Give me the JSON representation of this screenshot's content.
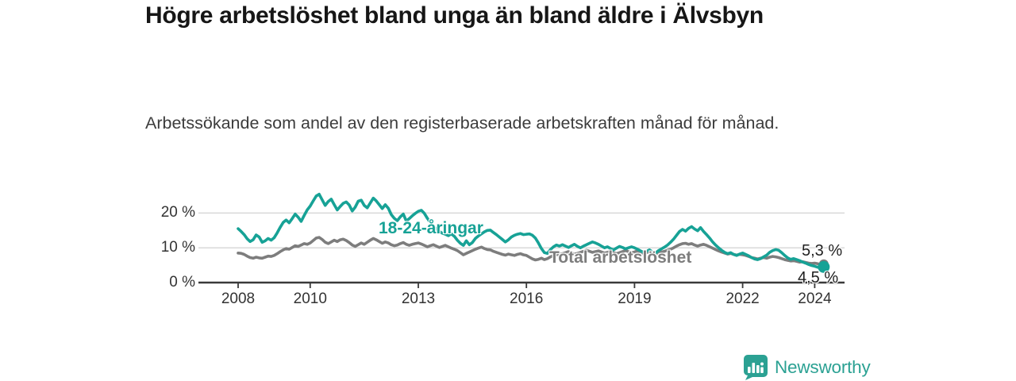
{
  "title": "Högre arbetslöshet bland unga än bland äldre i Älvsbyn",
  "subtitle": "Arbetssökande som andel av den registerbaserade arbetskraften månad för månad.",
  "branding": {
    "logo_text": "Newsworthy",
    "logo_icon": "bar-chart-pin-icon"
  },
  "colors": {
    "young": "#17a296",
    "total": "#7d7d7d",
    "axis_text": "#333333",
    "grid": "#d9d9d9",
    "axis_line": "#3a3a3a",
    "annotation_text": "#1f1f1f",
    "logo": "#2ba193"
  },
  "chart_data": {
    "type": "line",
    "unit": "%",
    "x_start": 2008,
    "x_step_months": 1,
    "x_ticks": [
      2008,
      2010,
      2013,
      2016,
      2019,
      2022,
      2024
    ],
    "y_ticks": [
      0,
      10,
      20
    ],
    "y_tick_labels": [
      "0 %",
      "10 %",
      "20 %"
    ],
    "ylim": [
      0,
      27
    ],
    "grid": true,
    "legend_position": "inline",
    "series": [
      {
        "name": "Total arbetslöshet",
        "color_key": "total",
        "end_label": "5,3 %",
        "end_value": 5.3,
        "values": [
          8.5,
          8.4,
          8.1,
          7.6,
          7.2,
          7.0,
          7.3,
          7.1,
          7.0,
          7.3,
          7.6,
          7.5,
          7.8,
          8.3,
          8.9,
          9.4,
          9.8,
          9.6,
          10.1,
          10.6,
          10.4,
          10.8,
          11.2,
          11.0,
          11.4,
          12.1,
          12.8,
          13.0,
          12.4,
          11.6,
          11.2,
          11.7,
          12.2,
          11.8,
          12.3,
          12.5,
          12.1,
          11.5,
          10.8,
          10.4,
          10.9,
          11.4,
          11.0,
          11.6,
          12.2,
          12.7,
          12.3,
          11.8,
          11.3,
          11.7,
          11.4,
          10.9,
          10.6,
          10.8,
          11.2,
          11.5,
          11.0,
          10.7,
          11.0,
          11.2,
          11.4,
          11.1,
          10.7,
          10.3,
          10.6,
          10.9,
          10.5,
          10.1,
          10.4,
          10.7,
          10.3,
          9.9,
          9.6,
          9.2,
          8.6,
          8.0,
          8.4,
          8.8,
          9.2,
          9.6,
          9.9,
          10.2,
          9.8,
          9.5,
          9.4,
          9.0,
          8.7,
          8.4,
          8.1,
          7.9,
          8.2,
          8.0,
          7.8,
          8.1,
          8.3,
          8.0,
          7.8,
          7.3,
          6.8,
          6.5,
          6.7,
          7.0,
          6.6,
          6.9,
          7.4,
          7.8,
          8.0,
          8.2,
          8.3,
          8.6,
          8.9,
          8.5,
          8.2,
          8.4,
          8.7,
          9.0,
          9.3,
          9.0,
          8.7,
          8.9,
          9.1,
          8.8,
          8.5,
          8.7,
          9.0,
          8.6,
          8.3,
          8.6,
          8.9,
          9.2,
          8.9,
          8.6,
          8.8,
          9.1,
          8.7,
          8.4,
          8.6,
          8.9,
          8.5,
          8.2,
          8.5,
          8.8,
          9.0,
          9.3,
          9.6,
          10.0,
          10.5,
          10.9,
          11.2,
          11.3,
          11.0,
          11.2,
          10.8,
          10.5,
          10.8,
          11.0,
          10.7,
          10.3,
          9.9,
          9.5,
          9.1,
          8.8,
          8.5,
          8.2,
          8.4,
          8.1,
          7.9,
          8.1,
          8.0,
          7.8,
          7.5,
          7.2,
          7.0,
          6.8,
          7.0,
          7.2,
          7.0,
          7.3,
          7.5,
          7.4,
          7.2,
          6.9,
          6.6,
          6.4,
          6.2,
          6.3,
          6.1,
          5.9,
          6.0,
          5.8,
          5.6,
          5.5,
          5.6,
          5.4,
          5.2,
          5.3
        ]
      },
      {
        "name": "18-24-åringar",
        "color_key": "young",
        "end_label": "4,5 %",
        "end_value": 4.5,
        "values": [
          15.5,
          14.7,
          13.8,
          12.6,
          11.8,
          12.3,
          13.7,
          13.1,
          11.6,
          12.0,
          12.7,
          12.2,
          12.9,
          14.3,
          15.9,
          17.3,
          18.0,
          17.2,
          18.4,
          19.7,
          18.8,
          17.6,
          19.3,
          20.9,
          22.0,
          23.5,
          24.9,
          25.4,
          23.8,
          22.2,
          23.3,
          24.0,
          22.4,
          20.9,
          21.9,
          22.8,
          23.2,
          22.3,
          20.6,
          21.7,
          23.4,
          23.7,
          22.2,
          21.5,
          22.9,
          24.3,
          23.5,
          22.4,
          21.3,
          22.4,
          21.4,
          19.6,
          18.5,
          17.8,
          18.9,
          19.7,
          17.7,
          18.4,
          19.2,
          19.9,
          20.5,
          20.8,
          19.9,
          18.5,
          17.3,
          16.2,
          15.4,
          14.7,
          14.2,
          13.9,
          13.5,
          14.0,
          13.3,
          12.2,
          11.3,
          10.7,
          12.0,
          10.9,
          11.5,
          12.7,
          13.4,
          14.0,
          14.6,
          15.0,
          15.1,
          14.4,
          13.8,
          13.1,
          12.4,
          11.7,
          12.3,
          13.1,
          13.6,
          13.9,
          14.1,
          13.8,
          13.9,
          14.0,
          13.6,
          12.8,
          11.4,
          9.8,
          8.6,
          8.4,
          9.5,
          10.3,
          10.8,
          10.5,
          10.9,
          10.5,
          10.1,
          10.6,
          11.0,
          10.4,
          10.0,
          10.5,
          10.9,
          11.3,
          11.7,
          11.4,
          11.0,
          10.5,
          10.0,
          10.3,
          9.8,
          9.4,
          9.9,
          10.4,
          10.1,
          9.7,
          10.0,
          10.3,
          10.0,
          9.6,
          9.1,
          8.7,
          9.0,
          9.4,
          8.8,
          8.5,
          9.2,
          9.7,
          10.2,
          10.8,
          11.6,
          12.5,
          13.6,
          14.7,
          15.3,
          14.8,
          15.6,
          16.1,
          15.4,
          14.9,
          15.8,
          14.7,
          13.8,
          12.8,
          11.7,
          10.8,
          10.0,
          9.3,
          8.7,
          8.3,
          8.6,
          8.1,
          7.8,
          8.2,
          8.5,
          8.1,
          7.7,
          7.2,
          6.8,
          6.6,
          6.9,
          7.4,
          7.9,
          8.7,
          9.2,
          9.5,
          9.3,
          8.6,
          7.8,
          7.1,
          6.7,
          6.9,
          6.6,
          6.3,
          5.9,
          5.6,
          5.2,
          4.9,
          4.7,
          4.4,
          4.3,
          4.5
        ]
      }
    ]
  }
}
